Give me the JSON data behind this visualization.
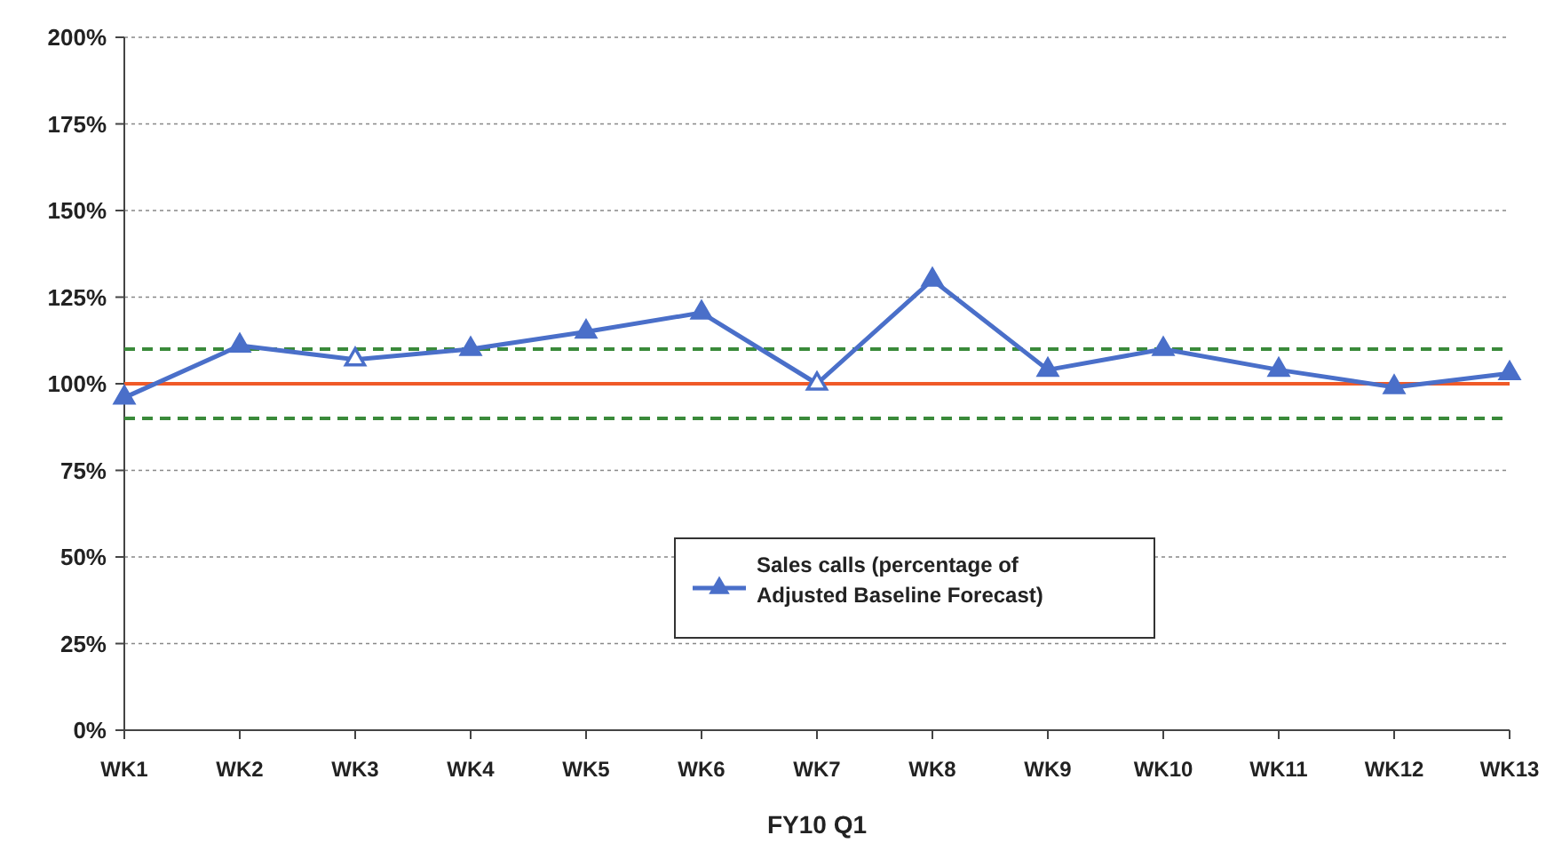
{
  "chart_data": {
    "type": "line",
    "xlabel": "FY10 Q1",
    "categories": [
      "WK1",
      "WK2",
      "WK3",
      "WK4",
      "WK5",
      "WK6",
      "WK7",
      "WK8",
      "WK9",
      "WK10",
      "WK11",
      "WK12",
      "WK13"
    ],
    "series": [
      {
        "name": "Sales calls (percentage of Adjusted Baseline Forecast)",
        "color": "#4a6fc9",
        "values": [
          96,
          111,
          107,
          110,
          115,
          120.5,
          100,
          130,
          104,
          110,
          104,
          99,
          103
        ]
      },
      {
        "type": "scatter",
        "color": "#ffffff",
        "values": [
          null,
          null,
          107,
          null,
          null,
          null,
          100,
          null,
          null,
          null,
          null,
          null,
          null
        ]
      }
    ],
    "ylim": [
      0,
      200
    ],
    "yticks": [
      {
        "value": 0,
        "label": "0%"
      },
      {
        "value": 25,
        "label": "25%"
      },
      {
        "value": 50,
        "label": "50%"
      },
      {
        "value": 75,
        "label": "75%"
      },
      {
        "value": 100,
        "label": "100%"
      },
      {
        "value": 125,
        "label": "125%"
      },
      {
        "value": 150,
        "label": "150%"
      },
      {
        "value": 175,
        "label": "175%"
      },
      {
        "value": 200,
        "label": "200%"
      }
    ],
    "ref_lines": [
      {
        "axis": "y",
        "value": 100,
        "color": "#f05a28",
        "line_style": "solid"
      },
      {
        "axis": "y",
        "value": 110,
        "color": "#3a8a3a",
        "line_style": "dashed"
      },
      {
        "axis": "y",
        "value": 90,
        "color": "#3a8a3a",
        "line_style": "dashed"
      }
    ],
    "grid": "y",
    "legend": "bottom",
    "marker": "triangle",
    "line_style": "solid"
  }
}
